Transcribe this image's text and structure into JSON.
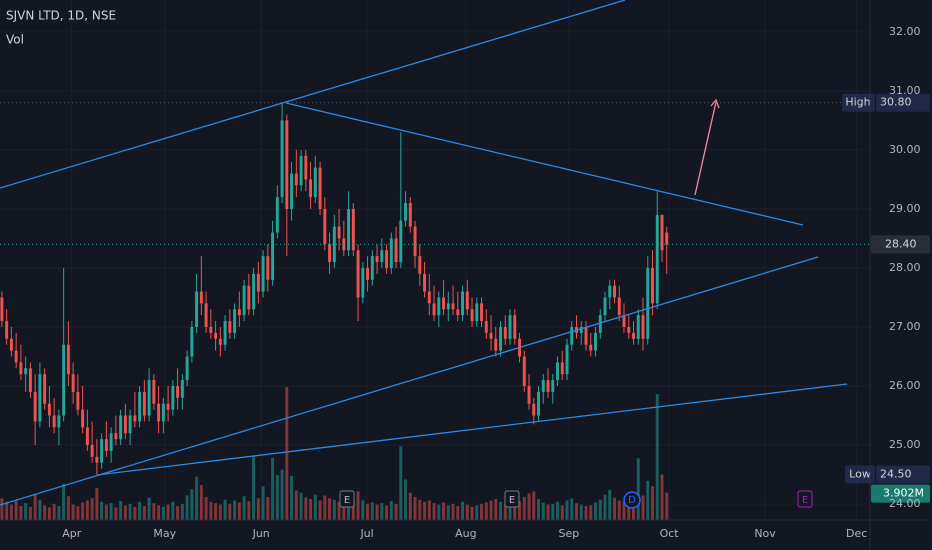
{
  "chart_data": {
    "type": "candlestick",
    "title": "SJVN LTD, 1D, NSE",
    "volume_label": "Vol",
    "up_color": "#26a69a",
    "down_color": "#ef5350",
    "grid": true,
    "ylim": [
      23.73,
      32.54
    ],
    "yticks": [
      {
        "value": 24,
        "label": "24.00"
      },
      {
        "value": 25,
        "label": "25.00"
      },
      {
        "value": 26,
        "label": "26.00"
      },
      {
        "value": 27,
        "label": "27.00"
      },
      {
        "value": 28,
        "label": "28.00"
      },
      {
        "value": 29,
        "label": "29.00"
      },
      {
        "value": 30,
        "label": "30.00"
      },
      {
        "value": 31,
        "label": "31.00"
      },
      {
        "value": 32,
        "label": "32.00"
      }
    ],
    "xlim": [
      -0.4,
      182.8
    ],
    "xticks": [
      {
        "value": 14.7,
        "label": "Apr"
      },
      {
        "value": 34.3,
        "label": "May"
      },
      {
        "value": 54.6,
        "label": "Jun"
      },
      {
        "value": 76.9,
        "label": "Jul"
      },
      {
        "value": 97.7,
        "label": "Aug"
      },
      {
        "value": 119.4,
        "label": "Sep"
      },
      {
        "value": 140.5,
        "label": "Oct"
      },
      {
        "value": 160.7,
        "label": "Nov"
      },
      {
        "value": 180.0,
        "label": "Dec"
      }
    ],
    "high": {
      "name": "High",
      "value": 30.8,
      "label": "30.80"
    },
    "low": {
      "name": "Low",
      "value": 24.5,
      "label": "24.50"
    },
    "last_price": {
      "value": 28.4,
      "label": "28.40"
    },
    "last_volume": {
      "value": 3902000,
      "label": "3.902M"
    },
    "events": [
      "E",
      "E",
      "D",
      "E"
    ],
    "candles": [
      [
        27.5,
        27.6,
        27.0,
        27.1
      ],
      [
        27.1,
        27.3,
        26.7,
        26.8
      ],
      [
        26.8,
        27.0,
        26.5,
        26.6
      ],
      [
        26.6,
        26.9,
        26.3,
        26.4
      ],
      [
        26.4,
        26.7,
        26.1,
        26.2
      ],
      [
        26.2,
        26.5,
        25.9,
        26.3
      ],
      [
        26.3,
        26.4,
        25.8,
        25.9
      ],
      [
        25.9,
        26.2,
        25.0,
        25.4
      ],
      [
        25.4,
        26.4,
        25.3,
        26.2
      ],
      [
        26.2,
        26.3,
        25.6,
        25.7
      ],
      [
        25.7,
        26.0,
        25.3,
        25.5
      ],
      [
        25.5,
        25.8,
        25.2,
        25.3
      ],
      [
        25.3,
        25.6,
        25.0,
        25.5
      ],
      [
        25.5,
        28.0,
        25.4,
        26.7
      ],
      [
        26.7,
        27.1,
        26.0,
        26.2
      ],
      [
        26.2,
        26.4,
        25.7,
        25.9
      ],
      [
        25.9,
        26.2,
        25.5,
        25.6
      ],
      [
        25.6,
        26.0,
        25.2,
        25.3
      ],
      [
        25.3,
        25.6,
        24.9,
        25.0
      ],
      [
        25.0,
        25.4,
        24.7,
        24.8
      ],
      [
        24.8,
        25.1,
        24.5,
        24.7
      ],
      [
        24.7,
        25.2,
        24.6,
        25.1
      ],
      [
        25.1,
        25.4,
        24.8,
        24.9
      ],
      [
        24.9,
        25.3,
        24.7,
        25.2
      ],
      [
        25.2,
        25.5,
        25.0,
        25.1
      ],
      [
        25.1,
        25.6,
        25.0,
        25.5
      ],
      [
        25.5,
        25.7,
        25.1,
        25.2
      ],
      [
        25.2,
        25.6,
        25.0,
        25.5
      ],
      [
        25.5,
        25.9,
        25.3,
        25.4
      ],
      [
        25.4,
        26.0,
        25.3,
        25.9
      ],
      [
        25.9,
        26.1,
        25.4,
        25.5
      ],
      [
        25.5,
        26.3,
        25.4,
        26.1
      ],
      [
        26.1,
        26.2,
        25.6,
        25.7
      ],
      [
        25.7,
        26.0,
        25.2,
        25.4
      ],
      [
        25.4,
        25.8,
        25.2,
        25.7
      ],
      [
        25.7,
        26.0,
        25.4,
        25.6
      ],
      [
        25.6,
        26.1,
        25.5,
        26.0
      ],
      [
        26.0,
        26.3,
        25.6,
        25.8
      ],
      [
        25.8,
        26.2,
        25.6,
        26.1
      ],
      [
        26.1,
        26.6,
        26.0,
        26.5
      ],
      [
        26.5,
        27.1,
        26.4,
        27.0
      ],
      [
        27.0,
        27.9,
        26.9,
        27.6
      ],
      [
        27.6,
        28.2,
        27.2,
        27.4
      ],
      [
        27.4,
        27.6,
        26.9,
        27.0
      ],
      [
        27.0,
        27.3,
        26.8,
        26.9
      ],
      [
        26.9,
        27.1,
        26.6,
        26.8
      ],
      [
        26.8,
        27.0,
        26.5,
        26.7
      ],
      [
        26.7,
        27.2,
        26.6,
        27.1
      ],
      [
        27.1,
        27.3,
        26.8,
        26.9
      ],
      [
        26.9,
        27.4,
        26.8,
        27.3
      ],
      [
        27.3,
        27.6,
        27.0,
        27.2
      ],
      [
        27.2,
        27.8,
        27.1,
        27.7
      ],
      [
        27.7,
        27.9,
        27.2,
        27.3
      ],
      [
        27.3,
        28.0,
        27.2,
        27.9
      ],
      [
        27.9,
        28.1,
        27.4,
        27.6
      ],
      [
        27.6,
        28.3,
        27.5,
        28.2
      ],
      [
        28.2,
        28.4,
        27.6,
        27.8
      ],
      [
        27.8,
        28.8,
        27.7,
        28.6
      ],
      [
        28.6,
        29.4,
        28.5,
        29.2
      ],
      [
        29.2,
        30.8,
        29.1,
        30.5
      ],
      [
        30.5,
        30.6,
        28.2,
        29.0
      ],
      [
        29.0,
        29.8,
        28.8,
        29.6
      ],
      [
        29.6,
        30.0,
        29.2,
        29.4
      ],
      [
        29.4,
        30.0,
        29.3,
        29.9
      ],
      [
        29.9,
        30.0,
        29.3,
        29.5
      ],
      [
        29.5,
        29.8,
        29.0,
        29.2
      ],
      [
        29.2,
        29.9,
        29.1,
        29.7
      ],
      [
        29.7,
        29.8,
        28.9,
        29.0
      ],
      [
        29.0,
        29.2,
        28.3,
        28.4
      ],
      [
        28.4,
        28.6,
        27.9,
        28.1
      ],
      [
        28.1,
        28.9,
        28.0,
        28.7
      ],
      [
        28.7,
        29.0,
        28.3,
        28.5
      ],
      [
        28.5,
        28.8,
        28.2,
        28.3
      ],
      [
        28.3,
        29.3,
        28.2,
        29.0
      ],
      [
        29.0,
        29.1,
        28.2,
        28.3
      ],
      [
        28.3,
        28.4,
        27.1,
        27.5
      ],
      [
        27.5,
        28.1,
        27.4,
        28.0
      ],
      [
        28.0,
        28.2,
        27.6,
        27.8
      ],
      [
        27.8,
        28.3,
        27.7,
        28.2
      ],
      [
        28.2,
        28.4,
        27.9,
        28.1
      ],
      [
        28.1,
        28.5,
        28.0,
        28.3
      ],
      [
        28.3,
        28.4,
        27.9,
        28.0
      ],
      [
        28.0,
        28.6,
        27.9,
        28.5
      ],
      [
        28.5,
        28.7,
        28.0,
        28.1
      ],
      [
        28.1,
        30.3,
        28.0,
        28.8
      ],
      [
        28.8,
        29.3,
        28.7,
        29.1
      ],
      [
        29.1,
        29.2,
        28.6,
        28.7
      ],
      [
        28.7,
        28.8,
        28.0,
        28.2
      ],
      [
        28.2,
        28.4,
        27.7,
        27.9
      ],
      [
        27.9,
        28.1,
        27.5,
        27.6
      ],
      [
        27.6,
        27.9,
        27.2,
        27.4
      ],
      [
        27.4,
        27.7,
        27.1,
        27.2
      ],
      [
        27.2,
        27.6,
        27.0,
        27.5
      ],
      [
        27.5,
        27.8,
        27.2,
        27.3
      ],
      [
        27.3,
        27.6,
        27.1,
        27.4
      ],
      [
        27.4,
        27.7,
        27.2,
        27.3
      ],
      [
        27.3,
        27.6,
        27.1,
        27.2
      ],
      [
        27.2,
        27.7,
        27.1,
        27.6
      ],
      [
        27.6,
        27.8,
        27.2,
        27.3
      ],
      [
        27.3,
        27.5,
        27.0,
        27.1
      ],
      [
        27.1,
        27.5,
        27.0,
        27.4
      ],
      [
        27.4,
        27.5,
        27.0,
        27.1
      ],
      [
        27.1,
        27.3,
        26.8,
        26.9
      ],
      [
        26.9,
        27.2,
        26.6,
        26.8
      ],
      [
        26.8,
        27.0,
        26.5,
        26.6
      ],
      [
        26.6,
        27.1,
        26.5,
        27.0
      ],
      [
        27.0,
        27.2,
        26.7,
        26.8
      ],
      [
        26.8,
        27.3,
        26.7,
        27.2
      ],
      [
        27.2,
        27.3,
        26.7,
        26.8
      ],
      [
        26.8,
        26.9,
        26.4,
        26.5
      ],
      [
        26.5,
        26.6,
        25.9,
        26.0
      ],
      [
        26.0,
        26.2,
        25.6,
        25.7
      ],
      [
        25.7,
        25.8,
        25.35,
        25.5
      ],
      [
        25.5,
        26.0,
        25.4,
        25.9
      ],
      [
        25.9,
        26.2,
        25.7,
        26.1
      ],
      [
        26.1,
        26.3,
        25.8,
        25.9
      ],
      [
        25.9,
        26.2,
        25.7,
        26.1
      ],
      [
        26.1,
        26.5,
        26.0,
        26.4
      ],
      [
        26.4,
        26.6,
        26.1,
        26.2
      ],
      [
        26.2,
        26.8,
        26.1,
        26.7
      ],
      [
        26.7,
        27.1,
        26.6,
        27.0
      ],
      [
        27.0,
        27.2,
        26.8,
        26.9
      ],
      [
        26.9,
        27.1,
        26.7,
        27.0
      ],
      [
        27.0,
        27.1,
        26.6,
        26.7
      ],
      [
        26.7,
        26.9,
        26.5,
        26.6
      ],
      [
        26.6,
        27.0,
        26.5,
        26.9
      ],
      [
        26.9,
        27.3,
        26.8,
        27.2
      ],
      [
        27.2,
        27.6,
        27.1,
        27.5
      ],
      [
        27.5,
        27.8,
        27.3,
        27.7
      ],
      [
        27.7,
        27.8,
        27.4,
        27.5
      ],
      [
        27.5,
        27.7,
        27.1,
        27.2
      ],
      [
        27.2,
        27.4,
        26.9,
        27.0
      ],
      [
        27.0,
        27.2,
        26.8,
        26.9
      ],
      [
        26.9,
        27.1,
        26.7,
        26.8
      ],
      [
        26.8,
        27.3,
        26.7,
        27.2
      ],
      [
        27.2,
        27.5,
        26.6,
        26.8
      ],
      [
        26.8,
        28.2,
        26.7,
        28.0
      ],
      [
        28.0,
        28.3,
        27.2,
        27.4
      ],
      [
        27.4,
        29.3,
        27.3,
        28.9
      ],
      [
        28.9,
        28.9,
        28.1,
        28.3
      ],
      [
        28.6,
        28.7,
        27.9,
        28.4
      ]
    ],
    "volume": [
      3100000,
      2600000,
      2200000,
      2800000,
      2000000,
      2400000,
      1900000,
      3600000,
      2900000,
      2100000,
      1800000,
      2300000,
      2000000,
      5200000,
      3400000,
      2200000,
      2000000,
      2500000,
      2800000,
      3100000,
      4600000,
      2600000,
      2200000,
      2400000,
      1800000,
      2700000,
      2100000,
      2300000,
      1900000,
      2600000,
      2000000,
      3200000,
      2400000,
      2100000,
      1900000,
      2200000,
      2600000,
      2000000,
      2300000,
      3500000,
      4400000,
      6200000,
      5000000,
      3300000,
      2600000,
      2400000,
      2200000,
      2900000,
      2300000,
      2800000,
      2500000,
      3400000,
      2700000,
      9200000,
      3100000,
      4800000,
      3300000,
      8900000,
      6400000,
      7200000,
      19000000,
      6300000,
      4200000,
      3900000,
      3200000,
      3000000,
      3600000,
      2800000,
      3500000,
      3100000,
      2900000,
      2600000,
      2400000,
      3300000,
      2700000,
      4100000,
      2800000,
      2300000,
      2500000,
      2200000,
      2400000,
      2100000,
      2700000,
      2300000,
      10500000,
      5800000,
      3900000,
      3300000,
      2900000,
      2600000,
      2800000,
      2400000,
      2200000,
      2500000,
      2100000,
      2300000,
      2000000,
      2600000,
      2200000,
      1900000,
      2100000,
      2300000,
      2500000,
      2800000,
      3000000,
      2600000,
      2200000,
      2400000,
      2100000,
      2700000,
      3300000,
      3800000,
      4100000,
      3000000,
      2500000,
      2200000,
      2300000,
      2600000,
      2100000,
      2800000,
      3100000,
      2400000,
      2200000,
      2000000,
      2100000,
      2500000,
      2900000,
      3600000,
      4300000,
      3200000,
      2800000,
      2600000,
      2400000,
      3000000,
      8800000,
      3500000,
      5600000,
      4800000,
      18000000,
      6500000,
      3902000
    ]
  }
}
